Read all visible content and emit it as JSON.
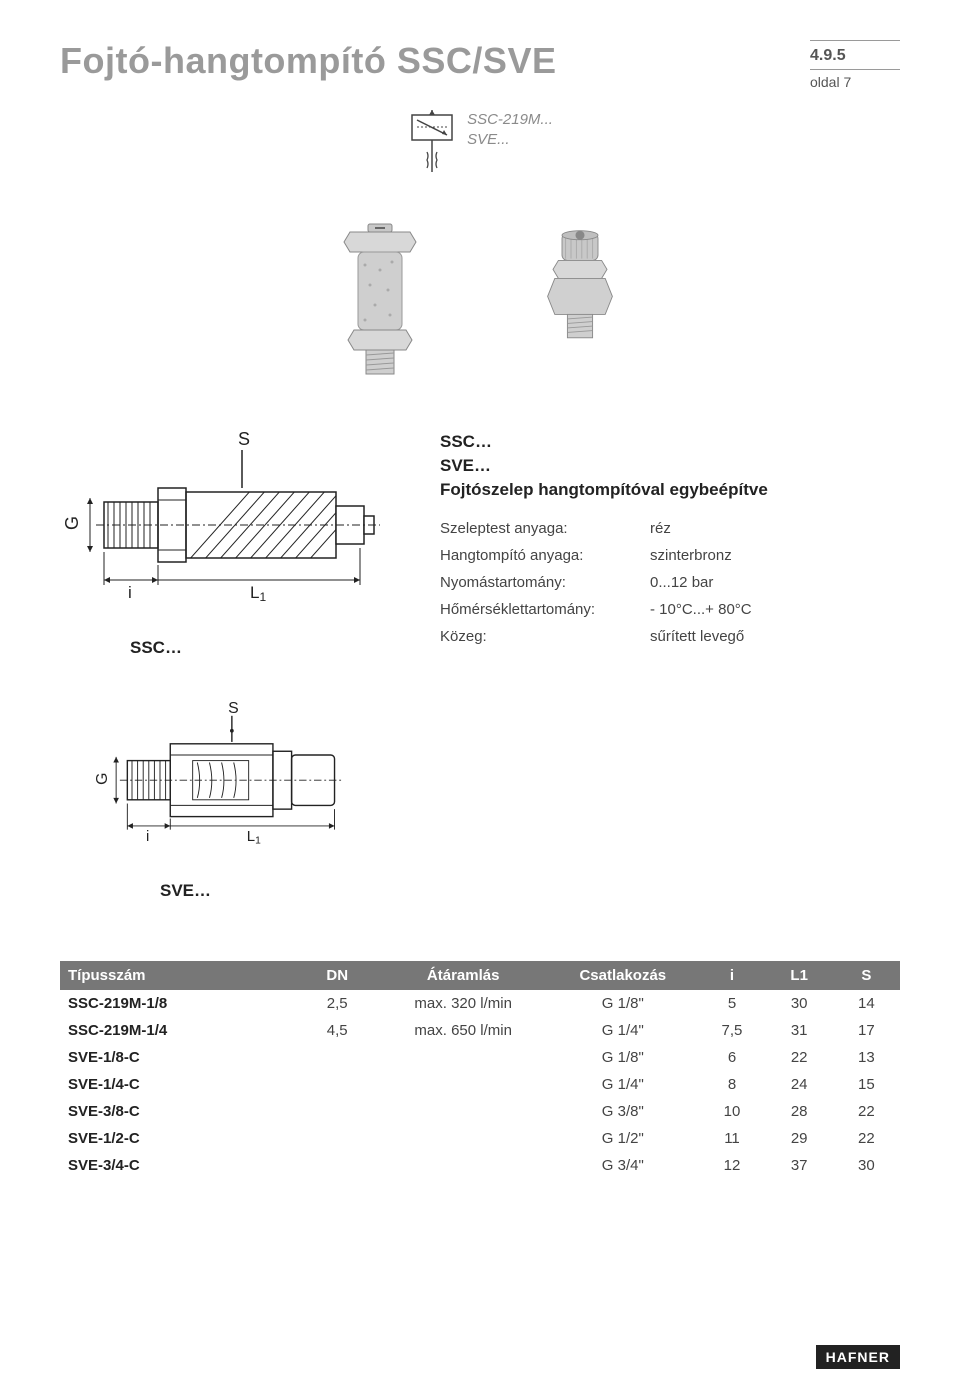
{
  "header": {
    "title": "Fojtó-hangtompító SSC/SVE",
    "version": "4.9.5",
    "page_label": "oldal 7"
  },
  "symbol": {
    "line1": "SSC-219M...",
    "line2": "SVE..."
  },
  "block": {
    "heading_l1": "SSC…",
    "heading_l2": "SVE…",
    "heading_l3": "Fojtószelep hangtompítóval egybeépítve"
  },
  "drawings": {
    "ssc_label": "SSC…",
    "sve_label": "SVE…",
    "dims": {
      "s": "S",
      "g": "G",
      "i": "i",
      "l1": "L1"
    }
  },
  "specs": [
    {
      "k": "Szeleptest anyaga:",
      "v": "réz"
    },
    {
      "k": "Hangtompító anyaga:",
      "v": "szinterbronz"
    },
    {
      "k": "Nyomástartomány:",
      "v": "0...12 bar"
    },
    {
      "k": "Hőmérséklettartomány:",
      "v": "- 10°C...+ 80°C"
    },
    {
      "k": "Közeg:",
      "v": "sűrített levegő"
    }
  ],
  "table": {
    "columns": [
      "Típusszám",
      "DN",
      "Átáramlás",
      "Csatlakozás",
      "i",
      "L1",
      "S"
    ],
    "col_widths": [
      "28%",
      "10%",
      "20%",
      "18%",
      "8%",
      "8%",
      "8%"
    ],
    "rows": [
      [
        "SSC-219M-1/8",
        "2,5",
        "max. 320 l/min",
        "G 1/8\"",
        "5",
        "30",
        "14"
      ],
      [
        "SSC-219M-1/4",
        "4,5",
        "max. 650 l/min",
        "G 1/4\"",
        "7,5",
        "31",
        "17"
      ],
      [
        "SVE-1/8-C",
        "",
        "",
        "G 1/8\"",
        "6",
        "22",
        "13"
      ],
      [
        "SVE-1/4-C",
        "",
        "",
        "G 1/4\"",
        "8",
        "24",
        "15"
      ],
      [
        "SVE-3/8-C",
        "",
        "",
        "G 3/8\"",
        "10",
        "28",
        "22"
      ],
      [
        "SVE-1/2-C",
        "",
        "",
        "G 1/2\"",
        "11",
        "29",
        "22"
      ],
      [
        "SVE-3/4-C",
        "",
        "",
        "G 3/4\"",
        "12",
        "37",
        "30"
      ]
    ]
  },
  "footer": {
    "brand": "HAFNER"
  },
  "colors": {
    "title_gray": "#9a9a9a",
    "body_text": "#444444",
    "table_header_bg": "#777777",
    "table_header_fg": "#ffffff",
    "footer_bg": "#222222",
    "footer_fg": "#ffffff",
    "background": "#ffffff"
  }
}
